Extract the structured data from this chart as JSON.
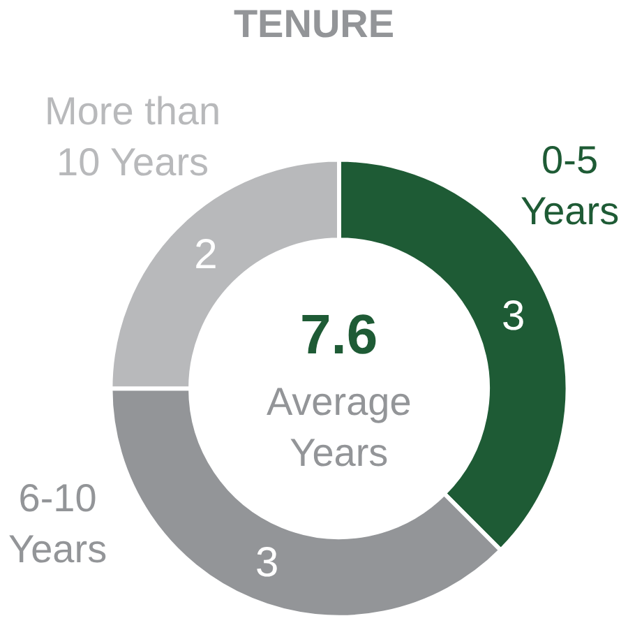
{
  "chart_data": {
    "type": "donut",
    "title": "TENURE",
    "categories": [
      "0-5 Years",
      "6-10 Years",
      "More than 10 Years"
    ],
    "values": [
      3,
      3,
      2
    ],
    "colors": [
      "#1e5b35",
      "#939598",
      "#b8b9bb"
    ],
    "data_labels": true,
    "legend": false,
    "annotations": [
      "7.6",
      "Average Years"
    ]
  }
}
